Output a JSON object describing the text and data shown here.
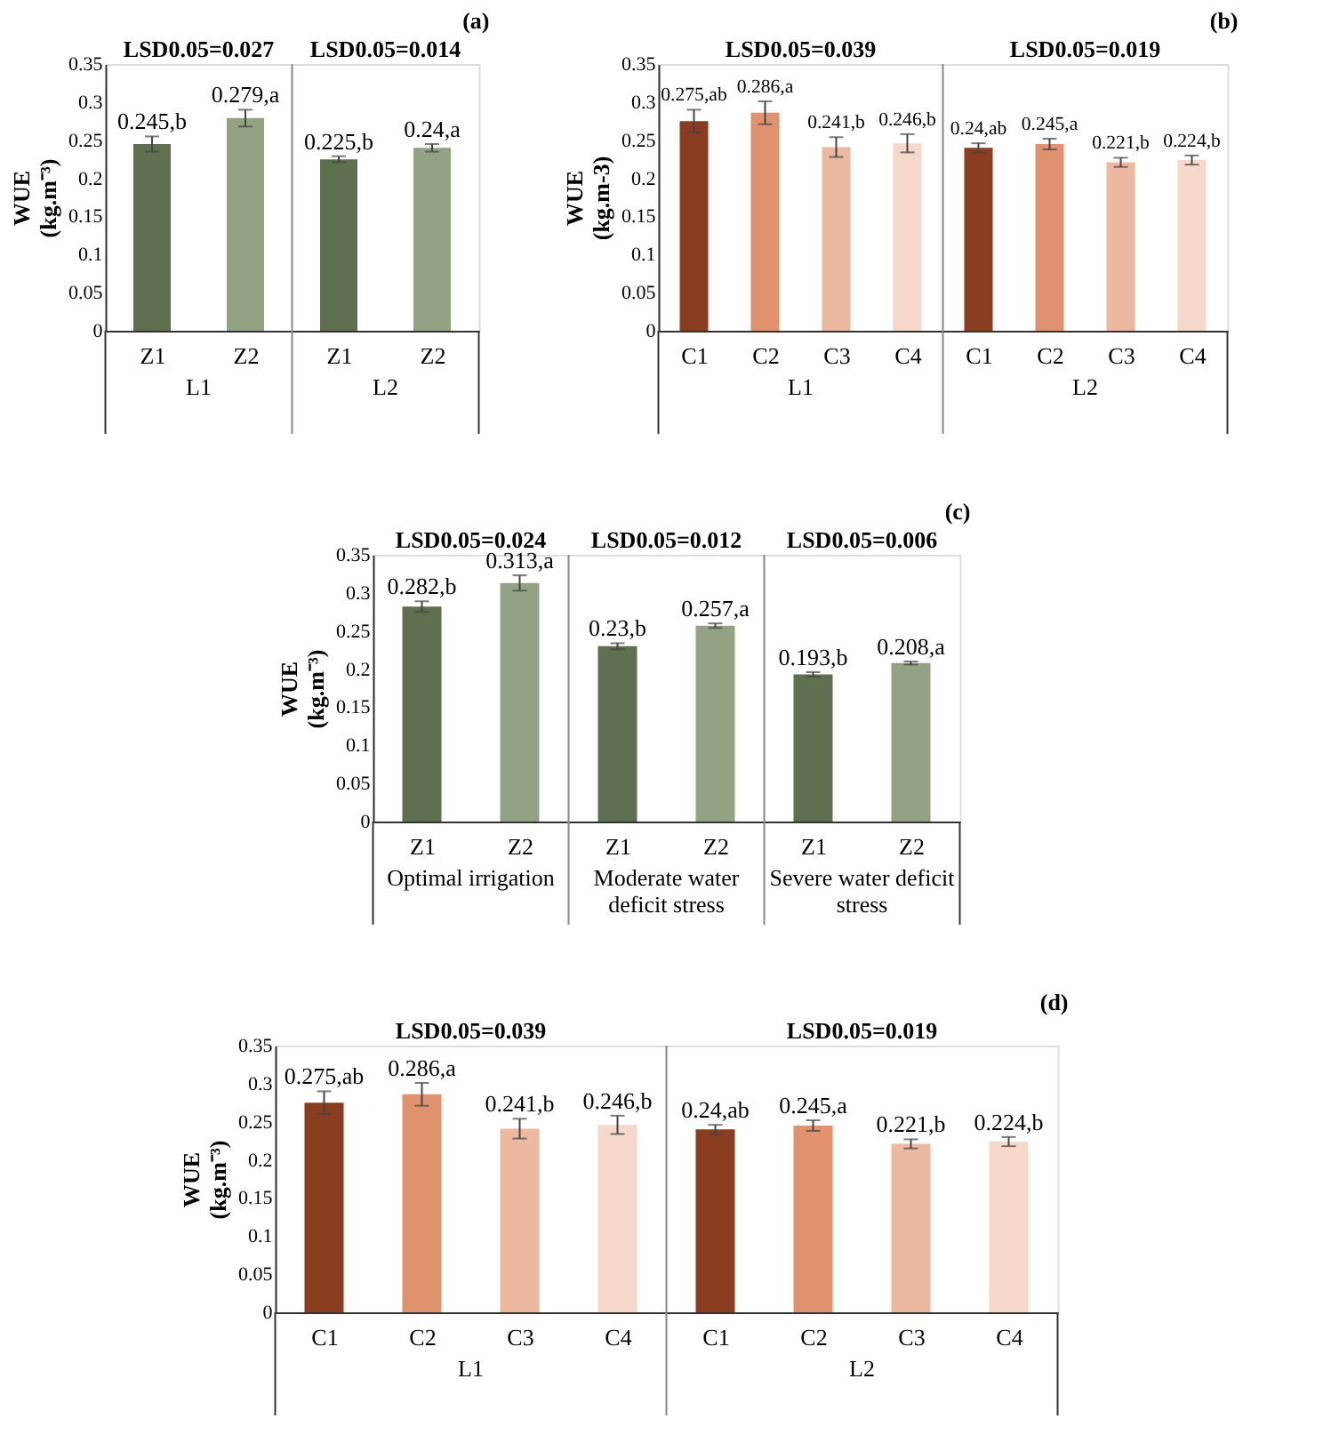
{
  "chart_data": [
    {
      "type": "bar",
      "title": "(a)",
      "ylabel": "WUE (kg.m⁻³)",
      "categories": [
        "Z1",
        "Z2",
        "Z1",
        "Z2"
      ],
      "values": [
        0.245,
        0.279,
        0.225,
        0.24
      ],
      "colors": [
        "#5f7050",
        "#92a283",
        "#5f7050",
        "#92a283"
      ],
      "errors": [
        0.01,
        0.011,
        0.004,
        0.005
      ],
      "value_labels": [
        "0.245,b",
        "0.279,a",
        "0.225,b",
        "0.24,a"
      ],
      "ylim": [
        0,
        0.35
      ],
      "yticks": [
        0,
        0.05,
        0.1,
        0.15,
        0.2,
        0.25,
        0.3,
        0.35
      ],
      "annotations": [
        "LSD0.05=0.027",
        "LSD0.05=0.014",
        "L1",
        "L2"
      ]
    },
    {
      "type": "bar",
      "title": "(b)",
      "ylabel": "WUE (kg.m-3)",
      "categories": [
        "C1",
        "C2",
        "C3",
        "C4",
        "C1",
        "C2",
        "C3",
        "C4"
      ],
      "values": [
        0.275,
        0.286,
        0.241,
        0.246,
        0.24,
        0.245,
        0.221,
        0.224
      ],
      "colors": [
        "#8b3d1f",
        "#e0926f",
        "#ecb8a0",
        "#f5d8ca",
        "#8b3d1f",
        "#e0926f",
        "#ecb8a0",
        "#f5d8ca"
      ],
      "errors": [
        0.015,
        0.015,
        0.013,
        0.012,
        0.006,
        0.007,
        0.006,
        0.006
      ],
      "value_labels": [
        "0.275,ab",
        "0.286,a",
        "0.241,b",
        "0.246,b",
        "0.24,ab",
        "0.245,a",
        "0.221,b",
        "0.224,b"
      ],
      "ylim": [
        0,
        0.35
      ],
      "yticks": [
        0,
        0.05,
        0.1,
        0.15,
        0.2,
        0.25,
        0.3,
        0.35
      ],
      "annotations": [
        "LSD0.05=0.039",
        "LSD0.05=0.019",
        "L1",
        "L2"
      ]
    },
    {
      "type": "bar",
      "title": "(c)",
      "ylabel": "WUE (kg.m⁻³)",
      "categories": [
        "Z1",
        "Z2",
        "Z1",
        "Z2",
        "Z1",
        "Z2"
      ],
      "values": [
        0.282,
        0.313,
        0.23,
        0.257,
        0.193,
        0.208
      ],
      "colors": [
        "#5f7050",
        "#92a283",
        "#5f7050",
        "#92a283",
        "#5f7050",
        "#92a283"
      ],
      "errors": [
        0.007,
        0.01,
        0.004,
        0.003,
        0.003,
        0.002
      ],
      "value_labels": [
        "0.282,b",
        "0.313,a",
        "0.23,b",
        "0.257,a",
        "0.193,b",
        "0.208,a"
      ],
      "ylim": [
        0,
        0.35
      ],
      "yticks": [
        0,
        0.05,
        0.1,
        0.15,
        0.2,
        0.25,
        0.3,
        0.35
      ],
      "annotations": [
        "LSD0.05=0.024",
        "LSD0.05=0.012",
        "LSD0.05=0.006",
        "Optimal irrigation",
        "Moderate water deficit stress",
        "Severe water deficit stress"
      ]
    },
    {
      "type": "bar",
      "title": "(d)",
      "ylabel": "WUE (kg.m⁻³)",
      "categories": [
        "C1",
        "C2",
        "C3",
        "C4",
        "C1",
        "C2",
        "C3",
        "C4"
      ],
      "values": [
        0.275,
        0.286,
        0.241,
        0.246,
        0.24,
        0.245,
        0.221,
        0.224
      ],
      "colors": [
        "#8b3d1f",
        "#e0926f",
        "#ecb8a0",
        "#f5d8ca",
        "#8b3d1f",
        "#e0926f",
        "#ecb8a0",
        "#f5d8ca"
      ],
      "errors": [
        0.015,
        0.015,
        0.013,
        0.012,
        0.006,
        0.007,
        0.006,
        0.006
      ],
      "value_labels": [
        "0.275,ab",
        "0.286,a",
        "0.241,b",
        "0.246,b",
        "0.24,ab",
        "0.245,a",
        "0.221,b",
        "0.224,b"
      ],
      "ylim": [
        0,
        0.35
      ],
      "yticks": [
        0,
        0.05,
        0.1,
        0.15,
        0.2,
        0.25,
        0.3,
        0.35
      ],
      "annotations": [
        "LSD0.05=0.039",
        "LSD0.05=0.019",
        "L1",
        "L2"
      ]
    }
  ]
}
